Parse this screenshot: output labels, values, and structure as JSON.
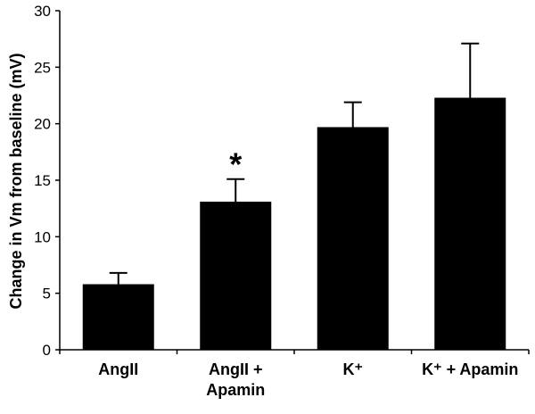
{
  "chart_data": {
    "type": "bar",
    "categories": [
      [
        "AngII"
      ],
      [
        "AngII +",
        "Apamin"
      ],
      [
        "K⁺"
      ],
      [
        "K⁺ + Apamin"
      ]
    ],
    "values": [
      5.8,
      13.1,
      19.7,
      22.3
    ],
    "error_bars": [
      1.0,
      2.0,
      2.2,
      4.8
    ],
    "annotations": [
      {
        "category_index": 1,
        "text": "*"
      }
    ],
    "title": "",
    "xlabel": "",
    "ylabel": "Change in Vm from baseline (mV)",
    "ylim": [
      0,
      30
    ],
    "yticks": [
      0,
      5,
      10,
      15,
      20,
      25,
      30
    ],
    "grid": false,
    "bar_color": "#000000"
  }
}
